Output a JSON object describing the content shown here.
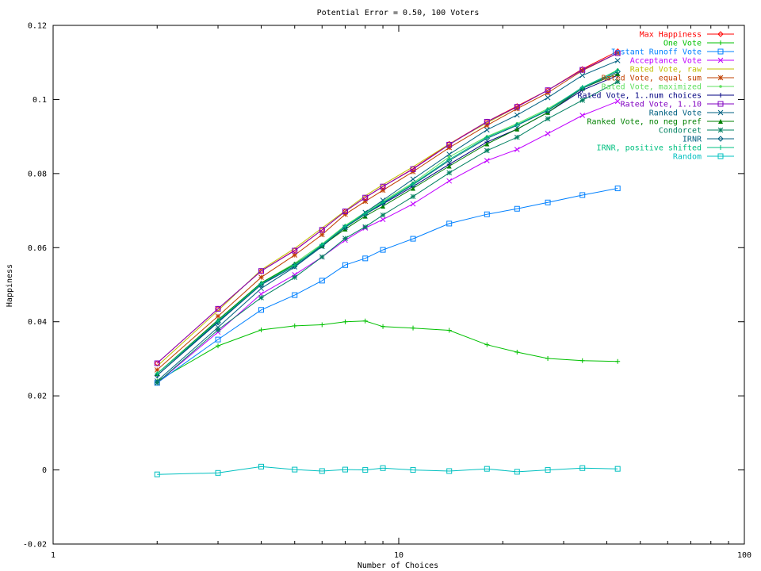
{
  "chart_data": {
    "type": "line",
    "title": "Potential Error = 0.50, 100 Voters",
    "xlabel": "Number of Choices",
    "ylabel": "Happiness",
    "x_scale": "log",
    "xlim": [
      1,
      100
    ],
    "ylim": [
      -0.02,
      0.12
    ],
    "x_ticks": [
      1,
      10,
      100
    ],
    "x_tick_labels": [
      "1",
      "10",
      "100"
    ],
    "y_ticks": [
      -0.02,
      0,
      0.02,
      0.04,
      0.06,
      0.08,
      0.1,
      0.12
    ],
    "y_tick_labels": [
      "-0.02",
      "0",
      "0.02",
      "0.04",
      "0.06",
      "0.08",
      "0.1",
      "0.12"
    ],
    "legend_position": "top-right",
    "x": [
      2,
      3,
      4,
      5,
      6,
      7,
      8,
      9,
      11,
      14,
      18,
      22,
      27,
      34,
      43
    ],
    "series": [
      {
        "name": "Max Happiness",
        "color": "#ff0000",
        "marker": "diamond",
        "values": [
          0.0288,
          0.0435,
          0.0537,
          0.0593,
          0.0648,
          0.0698,
          0.0735,
          0.0765,
          0.0813,
          0.088,
          0.094,
          0.0982,
          0.1025,
          0.1082,
          0.113
        ]
      },
      {
        "name": "One Vote",
        "color": "#00c000",
        "marker": "plus",
        "values": [
          0.024,
          0.0335,
          0.0378,
          0.0389,
          0.0392,
          0.04,
          0.0402,
          0.0387,
          0.0383,
          0.0377,
          0.0338,
          0.0318,
          0.0301,
          0.0295,
          0.0293
        ]
      },
      {
        "name": "Instant Runoff Vote",
        "color": "#0080ff",
        "marker": "square",
        "values": [
          0.0235,
          0.0352,
          0.0432,
          0.0472,
          0.0511,
          0.0553,
          0.0571,
          0.0594,
          0.0624,
          0.0665,
          0.069,
          0.0705,
          0.0722,
          0.0742,
          0.076
        ]
      },
      {
        "name": "Acceptance Vote",
        "color": "#c000ff",
        "marker": "x",
        "values": [
          0.0235,
          0.0372,
          0.0475,
          0.0527,
          0.0575,
          0.062,
          0.0653,
          0.0676,
          0.0718,
          0.078,
          0.0835,
          0.0865,
          0.0908,
          0.0957,
          0.0995
        ]
      },
      {
        "name": "Rated Vote, raw",
        "color": "#c0c000",
        "marker": "none",
        "values": [
          0.028,
          0.043,
          0.054,
          0.0598,
          0.0653,
          0.07,
          0.074,
          0.077,
          0.0818,
          0.088,
          0.0937,
          0.098,
          0.1025,
          0.108,
          0.1125
        ]
      },
      {
        "name": "Rated Vote, equal sum",
        "color": "#c04000",
        "marker": "star",
        "values": [
          0.027,
          0.0415,
          0.052,
          0.058,
          0.0635,
          0.069,
          0.0725,
          0.0755,
          0.0805,
          0.087,
          0.093,
          0.0975,
          0.1018,
          0.1078,
          0.1125
        ]
      },
      {
        "name": "Rated Vote, maximized",
        "color": "#60e060",
        "marker": "dot",
        "values": [
          0.026,
          0.04,
          0.0505,
          0.0558,
          0.061,
          0.066,
          0.0695,
          0.0725,
          0.0775,
          0.0845,
          0.09,
          0.0935,
          0.0975,
          0.103,
          0.108
        ]
      },
      {
        "name": "Rated Vote, 1..num choices",
        "color": "#000080",
        "marker": "plus",
        "values": [
          0.0255,
          0.04,
          0.05,
          0.0555,
          0.0605,
          0.0655,
          0.069,
          0.0718,
          0.0765,
          0.0825,
          0.0885,
          0.092,
          0.0965,
          0.1025,
          0.1065
        ]
      },
      {
        "name": "Rated Vote, 1..10",
        "color": "#8000c0",
        "marker": "square",
        "values": [
          0.0288,
          0.0435,
          0.0537,
          0.0592,
          0.0648,
          0.0698,
          0.0735,
          0.0765,
          0.0812,
          0.0878,
          0.094,
          0.098,
          0.1025,
          0.108,
          0.1125
        ]
      },
      {
        "name": "Ranked Vote",
        "color": "#006080",
        "marker": "x",
        "values": [
          0.024,
          0.0385,
          0.049,
          0.0548,
          0.0603,
          0.0655,
          0.0695,
          0.0728,
          0.0785,
          0.0852,
          0.0918,
          0.0958,
          0.1005,
          0.1065,
          0.1105
        ]
      },
      {
        "name": "Ranked Vote, no neg pref",
        "color": "#008000",
        "marker": "triangle",
        "values": [
          0.026,
          0.0405,
          0.0505,
          0.0555,
          0.0605,
          0.065,
          0.0685,
          0.0712,
          0.076,
          0.082,
          0.088,
          0.092,
          0.0965,
          0.103,
          0.107
        ]
      },
      {
        "name": "Condorcet",
        "color": "#008060",
        "marker": "star",
        "values": [
          0.0235,
          0.0378,
          0.0465,
          0.052,
          0.0575,
          0.0625,
          0.0656,
          0.0688,
          0.0738,
          0.0802,
          0.0862,
          0.0898,
          0.0948,
          0.0998,
          0.1048
        ]
      },
      {
        "name": "IRNR",
        "color": "#006080",
        "marker": "diamond",
        "values": [
          0.0255,
          0.0398,
          0.05,
          0.055,
          0.0605,
          0.0655,
          0.069,
          0.072,
          0.077,
          0.0835,
          0.0895,
          0.093,
          0.097,
          0.103,
          0.1075
        ]
      },
      {
        "name": "IRNR, positive shifted",
        "color": "#00c080",
        "marker": "plus",
        "values": [
          0.026,
          0.0402,
          0.0503,
          0.0553,
          0.0608,
          0.0658,
          0.0692,
          0.0722,
          0.0772,
          0.0838,
          0.0898,
          0.0932,
          0.0972,
          0.1033,
          0.1078
        ]
      },
      {
        "name": "Random",
        "color": "#00c0c0",
        "marker": "square",
        "values": [
          -0.0012,
          -0.0008,
          0.0009,
          0.0001,
          -0.0003,
          0.0001,
          0.0,
          0.0005,
          0.0,
          -0.0003,
          0.0003,
          -0.0005,
          0.0,
          0.0005,
          0.0003
        ]
      }
    ]
  }
}
